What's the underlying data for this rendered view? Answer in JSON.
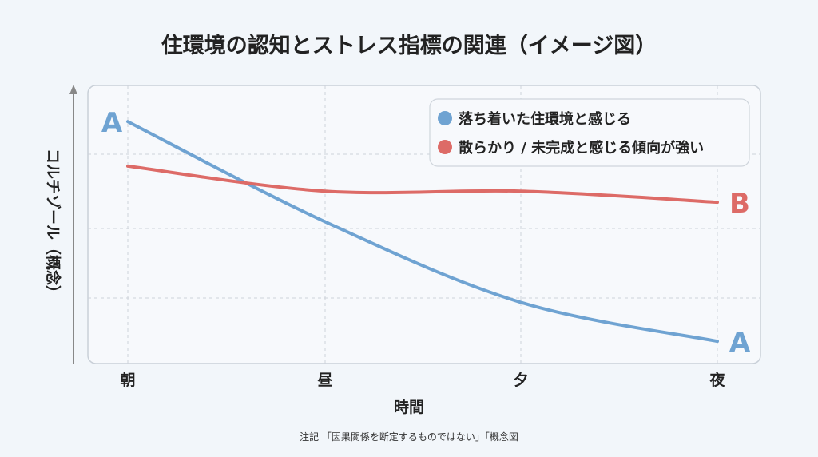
{
  "chart_data": {
    "type": "line",
    "title": "住環境の認知とストレス指標の関連（イメージ図）",
    "xlabel": "時間",
    "ylabel": "コルチゾール（概念）",
    "categories": [
      "朝",
      "昼",
      "夕",
      "夜"
    ],
    "ylim": [
      0,
      100
    ],
    "y_ticks_shown": false,
    "grid": true,
    "legend_position": "top-right",
    "series": [
      {
        "name": "落ち着いた住環境と感じる",
        "color": "#6fa3d2",
        "values": [
          87,
          51,
          22,
          8
        ],
        "start_label": "A",
        "end_label": "A"
      },
      {
        "name": "散らかり / 未完成と感じる傾向が強い",
        "color": "#dd6b67",
        "values": [
          71,
          62,
          62,
          58
        ],
        "end_label": "B"
      }
    ],
    "note": "注記 「因果関係を断定するものではない」「概念図"
  }
}
